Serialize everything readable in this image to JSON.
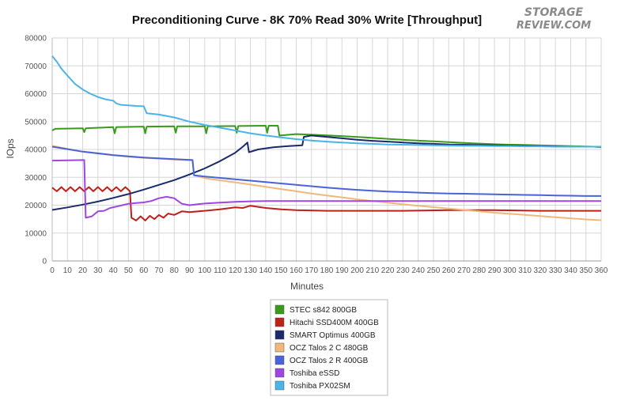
{
  "chart_data": {
    "type": "line",
    "title": "Preconditioning Curve - 8K 70% Read 30% Write [Throughput]",
    "xlabel": "Minutes",
    "ylabel": "IOps",
    "xlim": [
      0,
      360
    ],
    "ylim": [
      0,
      80000
    ],
    "x_ticks": [
      "0",
      "10",
      "20",
      "30",
      "40",
      "50",
      "60",
      "70",
      "80",
      "90",
      "100",
      "110",
      "120",
      "130",
      "140",
      "150",
      "160",
      "170",
      "180",
      "190",
      "200",
      "210",
      "220",
      "230",
      "240",
      "250",
      "260",
      "270",
      "280",
      "290",
      "300",
      "310",
      "320",
      "330",
      "340",
      "350",
      "360"
    ],
    "y_ticks": [
      "0",
      "10000",
      "20000",
      "30000",
      "40000",
      "50000",
      "60000",
      "70000",
      "80000"
    ],
    "grid": true,
    "legend_position": "bottom",
    "series": [
      {
        "name": "STEC s842 800GB",
        "color": "#3a9a1a",
        "points": [
          [
            0,
            46800
          ],
          [
            2,
            47400
          ],
          [
            20,
            47600
          ],
          [
            21,
            46200
          ],
          [
            22,
            47600
          ],
          [
            40,
            48000
          ],
          [
            41,
            45800
          ],
          [
            42,
            48000
          ],
          [
            60,
            48200
          ],
          [
            61,
            45800
          ],
          [
            62,
            48200
          ],
          [
            80,
            48300
          ],
          [
            81,
            46000
          ],
          [
            82,
            48300
          ],
          [
            100,
            48300
          ],
          [
            101,
            45800
          ],
          [
            102,
            48300
          ],
          [
            120,
            48400
          ],
          [
            121,
            46000
          ],
          [
            122,
            48400
          ],
          [
            140,
            48500
          ],
          [
            141,
            46000
          ],
          [
            142,
            48500
          ],
          [
            148,
            48500
          ],
          [
            149,
            45000
          ],
          [
            160,
            45500
          ],
          [
            175,
            45200
          ],
          [
            190,
            44800
          ],
          [
            205,
            44300
          ],
          [
            220,
            43800
          ],
          [
            235,
            43300
          ],
          [
            250,
            42900
          ],
          [
            265,
            42500
          ],
          [
            280,
            42100
          ],
          [
            295,
            41800
          ],
          [
            310,
            41600
          ],
          [
            325,
            41400
          ],
          [
            340,
            41200
          ],
          [
            355,
            41000
          ],
          [
            360,
            40800
          ]
        ]
      },
      {
        "name": "Hitachi SSD400M 400GB",
        "color": "#c0201a",
        "points": [
          [
            0,
            26300
          ],
          [
            3,
            25000
          ],
          [
            6,
            26500
          ],
          [
            9,
            25000
          ],
          [
            12,
            26500
          ],
          [
            15,
            25000
          ],
          [
            18,
            26500
          ],
          [
            21,
            25000
          ],
          [
            24,
            26500
          ],
          [
            27,
            25000
          ],
          [
            30,
            26500
          ],
          [
            33,
            25000
          ],
          [
            36,
            26500
          ],
          [
            39,
            25000
          ],
          [
            42,
            26500
          ],
          [
            45,
            25000
          ],
          [
            48,
            26500
          ],
          [
            51,
            25000
          ],
          [
            52,
            15500
          ],
          [
            55,
            14500
          ],
          [
            58,
            16000
          ],
          [
            61,
            14500
          ],
          [
            64,
            16200
          ],
          [
            67,
            15000
          ],
          [
            70,
            16500
          ],
          [
            73,
            15500
          ],
          [
            76,
            17000
          ],
          [
            80,
            16500
          ],
          [
            85,
            17800
          ],
          [
            90,
            17500
          ],
          [
            100,
            18000
          ],
          [
            110,
            18500
          ],
          [
            120,
            19200
          ],
          [
            125,
            19000
          ],
          [
            130,
            19800
          ],
          [
            140,
            19000
          ],
          [
            150,
            18500
          ],
          [
            160,
            18200
          ],
          [
            180,
            18000
          ],
          [
            200,
            18000
          ],
          [
            230,
            18000
          ],
          [
            260,
            18200
          ],
          [
            290,
            18200
          ],
          [
            320,
            18000
          ],
          [
            340,
            18000
          ],
          [
            360,
            18000
          ]
        ]
      },
      {
        "name": "SMART Optimus 400GB",
        "color": "#1a2a6a",
        "points": [
          [
            0,
            18300
          ],
          [
            10,
            19200
          ],
          [
            20,
            20200
          ],
          [
            30,
            21300
          ],
          [
            40,
            22600
          ],
          [
            50,
            24000
          ],
          [
            60,
            25600
          ],
          [
            70,
            27300
          ],
          [
            80,
            29000
          ],
          [
            90,
            31000
          ],
          [
            100,
            33200
          ],
          [
            110,
            35800
          ],
          [
            120,
            38800
          ],
          [
            125,
            41000
          ],
          [
            128,
            42500
          ],
          [
            129,
            39000
          ],
          [
            135,
            40000
          ],
          [
            145,
            40800
          ],
          [
            155,
            41200
          ],
          [
            164,
            41500
          ],
          [
            165,
            44500
          ],
          [
            170,
            45000
          ],
          [
            180,
            44500
          ],
          [
            190,
            44000
          ],
          [
            200,
            43500
          ],
          [
            210,
            43100
          ],
          [
            220,
            42800
          ],
          [
            230,
            42500
          ],
          [
            240,
            42200
          ],
          [
            250,
            42000
          ],
          [
            260,
            41800
          ],
          [
            270,
            41700
          ],
          [
            280,
            41600
          ],
          [
            290,
            41500
          ],
          [
            300,
            41400
          ],
          [
            310,
            41300
          ],
          [
            320,
            41200
          ],
          [
            330,
            41100
          ],
          [
            340,
            41000
          ],
          [
            350,
            41000
          ],
          [
            360,
            41000
          ]
        ]
      },
      {
        "name": "OCZ Talos 2 C 480GB",
        "color": "#f0b87a",
        "points": [
          [
            0,
            41300
          ],
          [
            10,
            40200
          ],
          [
            20,
            39200
          ],
          [
            30,
            38500
          ],
          [
            40,
            37900
          ],
          [
            50,
            37400
          ],
          [
            60,
            37000
          ],
          [
            70,
            36700
          ],
          [
            80,
            36400
          ],
          [
            92,
            36100
          ],
          [
            93,
            30800
          ],
          [
            100,
            29700
          ],
          [
            110,
            28900
          ],
          [
            120,
            28200
          ],
          [
            130,
            27400
          ],
          [
            140,
            26600
          ],
          [
            150,
            25800
          ],
          [
            160,
            25000
          ],
          [
            170,
            24200
          ],
          [
            180,
            23500
          ],
          [
            190,
            22800
          ],
          [
            200,
            22100
          ],
          [
            210,
            21500
          ],
          [
            220,
            20900
          ],
          [
            230,
            20300
          ],
          [
            240,
            19800
          ],
          [
            250,
            19300
          ],
          [
            260,
            18800
          ],
          [
            270,
            18300
          ],
          [
            280,
            17800
          ],
          [
            290,
            17300
          ],
          [
            300,
            16900
          ],
          [
            310,
            16500
          ],
          [
            320,
            16100
          ],
          [
            330,
            15700
          ],
          [
            340,
            15300
          ],
          [
            350,
            14900
          ],
          [
            360,
            14600
          ]
        ]
      },
      {
        "name": "OCZ Talos 2 R 400GB",
        "color": "#4a63d8",
        "points": [
          [
            0,
            41000
          ],
          [
            10,
            40100
          ],
          [
            20,
            39200
          ],
          [
            30,
            38600
          ],
          [
            40,
            38000
          ],
          [
            50,
            37500
          ],
          [
            60,
            37100
          ],
          [
            70,
            36800
          ],
          [
            80,
            36500
          ],
          [
            92,
            36200
          ],
          [
            93,
            30700
          ],
          [
            100,
            30300
          ],
          [
            110,
            29800
          ],
          [
            120,
            29300
          ],
          [
            130,
            28800
          ],
          [
            140,
            28300
          ],
          [
            150,
            27800
          ],
          [
            160,
            27300
          ],
          [
            170,
            26800
          ],
          [
            180,
            26300
          ],
          [
            190,
            25900
          ],
          [
            200,
            25500
          ],
          [
            210,
            25200
          ],
          [
            220,
            24900
          ],
          [
            230,
            24700
          ],
          [
            240,
            24500
          ],
          [
            250,
            24300
          ],
          [
            260,
            24200
          ],
          [
            270,
            24100
          ],
          [
            280,
            24000
          ],
          [
            290,
            23900
          ],
          [
            300,
            23800
          ],
          [
            310,
            23700
          ],
          [
            320,
            23600
          ],
          [
            330,
            23500
          ],
          [
            340,
            23400
          ],
          [
            350,
            23300
          ],
          [
            360,
            23300
          ]
        ]
      },
      {
        "name": "Toshiba eSSD",
        "color": "#a046e0",
        "points": [
          [
            0,
            36000
          ],
          [
            21,
            36200
          ],
          [
            22,
            15500
          ],
          [
            26,
            16000
          ],
          [
            30,
            17800
          ],
          [
            34,
            18000
          ],
          [
            38,
            19000
          ],
          [
            42,
            19500
          ],
          [
            46,
            20000
          ],
          [
            50,
            20500
          ],
          [
            55,
            20800
          ],
          [
            60,
            21000
          ],
          [
            65,
            21500
          ],
          [
            70,
            22500
          ],
          [
            75,
            23000
          ],
          [
            80,
            22500
          ],
          [
            85,
            20500
          ],
          [
            90,
            20000
          ],
          [
            95,
            20300
          ],
          [
            100,
            20600
          ],
          [
            110,
            20900
          ],
          [
            120,
            21200
          ],
          [
            130,
            21400
          ],
          [
            140,
            21500
          ],
          [
            150,
            21500
          ],
          [
            160,
            21500
          ],
          [
            180,
            21500
          ],
          [
            200,
            21500
          ],
          [
            230,
            21500
          ],
          [
            260,
            21500
          ],
          [
            290,
            21500
          ],
          [
            320,
            21500
          ],
          [
            350,
            21500
          ],
          [
            360,
            21500
          ]
        ]
      },
      {
        "name": "Toshiba PX02SM",
        "color": "#4ab4e8",
        "points": [
          [
            0,
            73500
          ],
          [
            3,
            71500
          ],
          [
            6,
            69000
          ],
          [
            10,
            66500
          ],
          [
            15,
            63500
          ],
          [
            20,
            61500
          ],
          [
            25,
            60000
          ],
          [
            30,
            58800
          ],
          [
            35,
            58000
          ],
          [
            40,
            57500
          ],
          [
            42,
            56500
          ],
          [
            45,
            56000
          ],
          [
            50,
            55800
          ],
          [
            55,
            55600
          ],
          [
            60,
            55500
          ],
          [
            62,
            53000
          ],
          [
            70,
            52500
          ],
          [
            80,
            51500
          ],
          [
            90,
            50000
          ],
          [
            100,
            48800
          ],
          [
            110,
            47800
          ],
          [
            120,
            46800
          ],
          [
            130,
            45800
          ],
          [
            140,
            45000
          ],
          [
            150,
            44300
          ],
          [
            160,
            43700
          ],
          [
            170,
            43200
          ],
          [
            180,
            42800
          ],
          [
            190,
            42500
          ],
          [
            200,
            42200
          ],
          [
            210,
            42000
          ],
          [
            220,
            41800
          ],
          [
            230,
            41700
          ],
          [
            240,
            41600
          ],
          [
            250,
            41500
          ],
          [
            260,
            41400
          ],
          [
            270,
            41300
          ],
          [
            280,
            41300
          ],
          [
            290,
            41200
          ],
          [
            300,
            41200
          ],
          [
            310,
            41100
          ],
          [
            320,
            41100
          ],
          [
            330,
            41000
          ],
          [
            340,
            41000
          ],
          [
            350,
            41000
          ],
          [
            360,
            41000
          ]
        ]
      }
    ]
  },
  "logo": {
    "line1": "STORAGE",
    "line2": "REVIEW.COM"
  }
}
